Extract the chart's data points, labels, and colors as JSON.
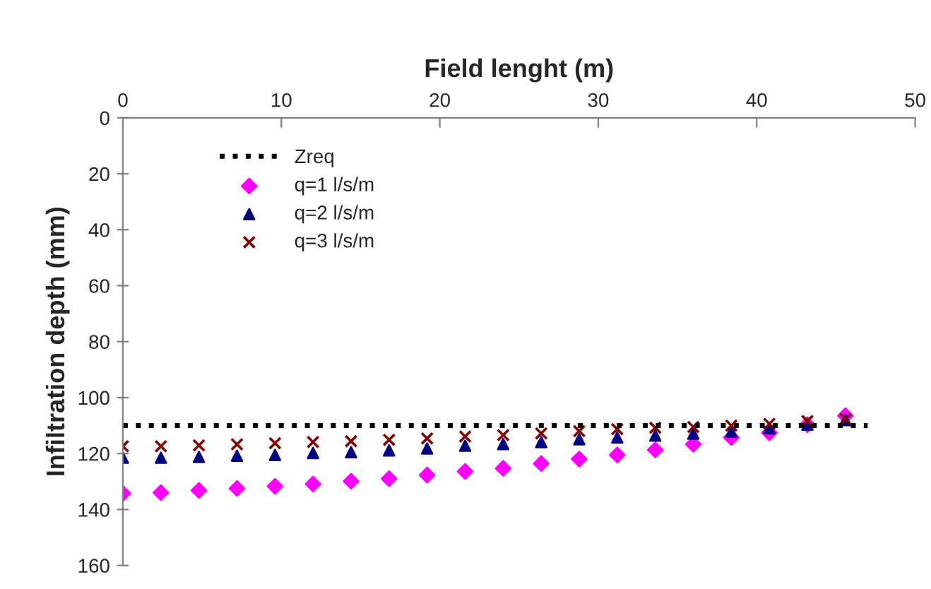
{
  "chart_data": {
    "type": "scatter",
    "xlabel": "Field lenght (m)",
    "ylabel": "Infiltration depth (mm)",
    "xlim": [
      0,
      50
    ],
    "xticks": [
      0,
      10,
      20,
      30,
      40,
      50
    ],
    "ylim": [
      160,
      0
    ],
    "yticks": [
      0,
      20,
      40,
      60,
      80,
      100,
      120,
      140,
      160
    ],
    "x": [
      0,
      2.4,
      4.8,
      7.2,
      9.6,
      12,
      14.4,
      16.8,
      19.2,
      21.6,
      24,
      26.4,
      28.8,
      31.2,
      33.6,
      36,
      38.4,
      40.8,
      43.2,
      45.6
    ],
    "grid": false,
    "legend": "top left",
    "series": [
      {
        "name": "Zreq",
        "type": "line",
        "line_style": "dotted",
        "marker": "none",
        "color": "#000000",
        "x": [
          0,
          47
        ],
        "values": [
          110,
          110
        ]
      },
      {
        "name": "q=1 l/s/m",
        "marker": "diamond",
        "color": "#ff00ff",
        "values": [
          134.3,
          134,
          133.2,
          132.5,
          131.7,
          130.9,
          129.9,
          129,
          127.7,
          126.4,
          125.3,
          123.6,
          122,
          120.5,
          118.7,
          116.7,
          114.3,
          112.6,
          109.7,
          106.5
        ]
      },
      {
        "name": "q=2 l/s/m",
        "marker": "triangle",
        "color": "#000080",
        "values": [
          121.5,
          121.5,
          121.2,
          120.8,
          120.5,
          119.8,
          119.5,
          118.9,
          118.2,
          117.2,
          116.6,
          115.9,
          114.9,
          114.3,
          113.6,
          112.9,
          112.2,
          111,
          109.7,
          108
        ]
      },
      {
        "name": "q=3 l/s/m",
        "marker": "cross",
        "color": "#800000",
        "values": [
          117.4,
          117.4,
          117.1,
          116.7,
          116.3,
          115.9,
          115.6,
          115.1,
          114.6,
          113.9,
          113.4,
          112.8,
          112,
          111.3,
          110.8,
          110.5,
          110,
          109.4,
          108.4,
          107.7
        ]
      }
    ]
  }
}
